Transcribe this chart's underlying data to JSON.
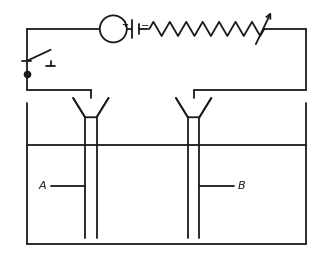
{
  "bg_color": "#ffffff",
  "line_color": "#1a1a1a",
  "line_width": 1.3,
  "fig_width": 3.23,
  "fig_height": 2.57,
  "dpi": 100,
  "xlim": [
    0,
    10
  ],
  "ylim": [
    0,
    8
  ]
}
